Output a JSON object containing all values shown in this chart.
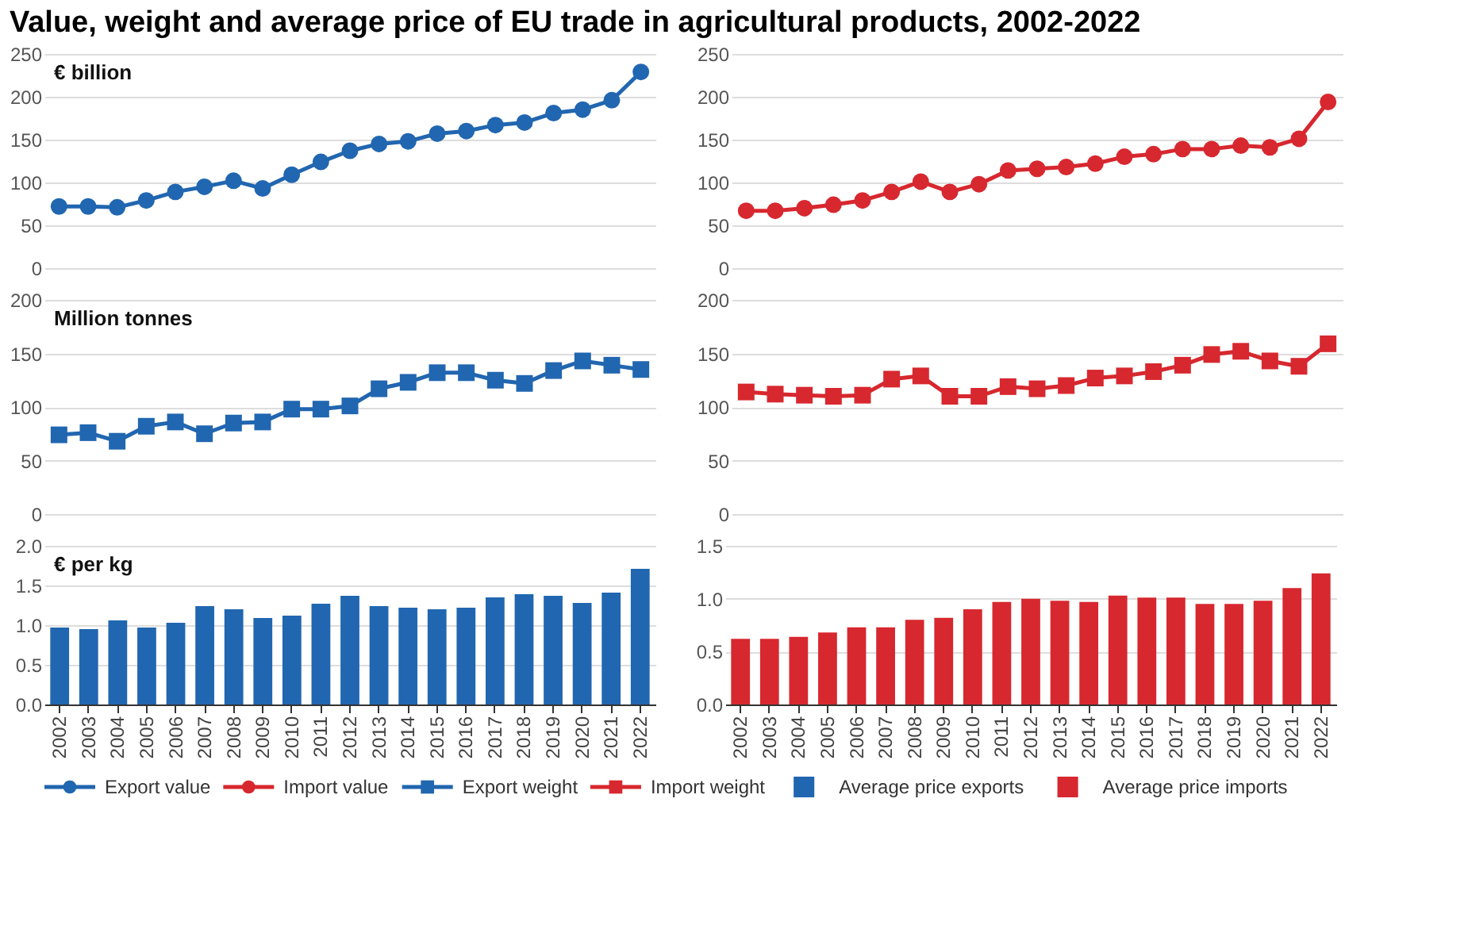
{
  "chart_data": [
    {
      "type": "line",
      "title": "Value, weight and average price of EU trade in agricultural products, 2002-2022",
      "ylabel": "€ billion",
      "categories": [
        "2002",
        "2003",
        "2004",
        "2005",
        "2006",
        "2007",
        "2008",
        "2009",
        "2010",
        "2011",
        "2012",
        "2013",
        "2014",
        "2015",
        "2016",
        "2017",
        "2018",
        "2019",
        "2020",
        "2021",
        "2022"
      ],
      "series": [
        {
          "name": "Export value",
          "color": "#2166b0",
          "values": [
            72,
            72,
            71,
            79,
            89,
            95,
            102,
            93,
            109,
            124,
            137,
            145,
            148,
            157,
            160,
            167,
            170,
            181,
            185,
            196,
            229
          ]
        }
      ],
      "ylim": [
        0,
        250
      ],
      "yticks": [
        0,
        50,
        100,
        150,
        200,
        250
      ],
      "grid": "y",
      "marker": "circle",
      "tick_labels": "y",
      "legend": "bottom"
    },
    {
      "type": "line",
      "categories": [
        "2002",
        "2003",
        "2004",
        "2005",
        "2006",
        "2007",
        "2008",
        "2009",
        "2010",
        "2011",
        "2012",
        "2013",
        "2014",
        "2015",
        "2016",
        "2017",
        "2018",
        "2019",
        "2020",
        "2021",
        "2022"
      ],
      "series": [
        {
          "name": "Import value",
          "color": "#d7282f",
          "values": [
            67,
            67,
            70,
            74,
            79,
            89,
            101,
            89,
            98,
            114,
            116,
            118,
            122,
            130,
            133,
            139,
            139,
            143,
            141,
            151,
            194
          ]
        }
      ],
      "ylim": [
        0,
        250
      ],
      "yticks": [
        0,
        50,
        100,
        150,
        200,
        250
      ],
      "grid": "y",
      "marker": "circle",
      "tick_labels": "y",
      "legend": "bottom"
    },
    {
      "type": "line",
      "ylabel": "Million tonnes",
      "categories": [
        "2002",
        "2003",
        "2004",
        "2005",
        "2006",
        "2007",
        "2008",
        "2009",
        "2010",
        "2011",
        "2012",
        "2013",
        "2014",
        "2015",
        "2016",
        "2017",
        "2018",
        "2019",
        "2020",
        "2021",
        "2022"
      ],
      "series": [
        {
          "name": "Export weight",
          "color": "#2166b0",
          "values": [
            74,
            76,
            68,
            82,
            86,
            75,
            85,
            86,
            98,
            98,
            101,
            117,
            123,
            132,
            132,
            125,
            122,
            134,
            143,
            139,
            135
          ]
        }
      ],
      "ylim": [
        0,
        200
      ],
      "yticks": [
        0,
        50,
        100,
        150,
        200
      ],
      "grid": "y",
      "marker": "square",
      "tick_labels": "y",
      "legend": "bottom"
    },
    {
      "type": "line",
      "categories": [
        "2002",
        "2003",
        "2004",
        "2005",
        "2006",
        "2007",
        "2008",
        "2009",
        "2010",
        "2011",
        "2012",
        "2013",
        "2014",
        "2015",
        "2016",
        "2017",
        "2018",
        "2019",
        "2020",
        "2021",
        "2022"
      ],
      "series": [
        {
          "name": "Import weight",
          "color": "#d7282f",
          "values": [
            114,
            112,
            111,
            110,
            111,
            126,
            129,
            110,
            110,
            119,
            117,
            120,
            127,
            129,
            133,
            139,
            149,
            152,
            143,
            138,
            159
          ]
        }
      ],
      "ylim": [
        0,
        200
      ],
      "yticks": [
        0,
        50,
        100,
        150,
        200
      ],
      "grid": "y",
      "marker": "square",
      "tick_labels": "y",
      "legend": "bottom"
    },
    {
      "type": "bar",
      "ylabel": "€ per kg",
      "categories": [
        "2002",
        "2003",
        "2004",
        "2005",
        "2006",
        "2007",
        "2008",
        "2009",
        "2010",
        "2011",
        "2012",
        "2013",
        "2014",
        "2015",
        "2016",
        "2017",
        "2018",
        "2019",
        "2020",
        "2021",
        "2022"
      ],
      "series": [
        {
          "name": "Average price exports",
          "color": "#2166b0",
          "values": [
            0.97,
            0.95,
            1.06,
            0.97,
            1.03,
            1.24,
            1.2,
            1.09,
            1.12,
            1.27,
            1.37,
            1.24,
            1.22,
            1.2,
            1.22,
            1.35,
            1.39,
            1.37,
            1.28,
            1.41,
            1.71
          ]
        }
      ],
      "ylim": [
        0,
        2.0
      ],
      "yticks": [
        {
          "value": 0,
          "label": "0.0"
        },
        0.5,
        {
          "value": 1,
          "label": "1.0"
        },
        1.5,
        {
          "value": 2,
          "label": "2.0"
        }
      ],
      "grid": "y",
      "legend": "bottom"
    },
    {
      "type": "bar",
      "categories": [
        "2002",
        "2003",
        "2004",
        "2005",
        "2006",
        "2007",
        "2008",
        "2009",
        "2010",
        "2011",
        "2012",
        "2013",
        "2014",
        "2015",
        "2016",
        "2017",
        "2018",
        "2019",
        "2020",
        "2021",
        "2022"
      ],
      "series": [
        {
          "name": "Average price imports",
          "color": "#d7282f",
          "values": [
            0.62,
            0.62,
            0.64,
            0.68,
            0.73,
            0.73,
            0.8,
            0.82,
            0.9,
            0.97,
            1.0,
            0.98,
            0.97,
            1.03,
            1.01,
            1.01,
            0.95,
            0.95,
            0.98,
            1.1,
            1.24
          ]
        }
      ],
      "ylim": [
        0,
        1.5
      ],
      "yticks": [
        {
          "value": 0,
          "label": "0.0"
        },
        0.5,
        {
          "value": 1,
          "label": "1.0"
        },
        1.5
      ],
      "grid": "y",
      "legend": "bottom"
    }
  ]
}
